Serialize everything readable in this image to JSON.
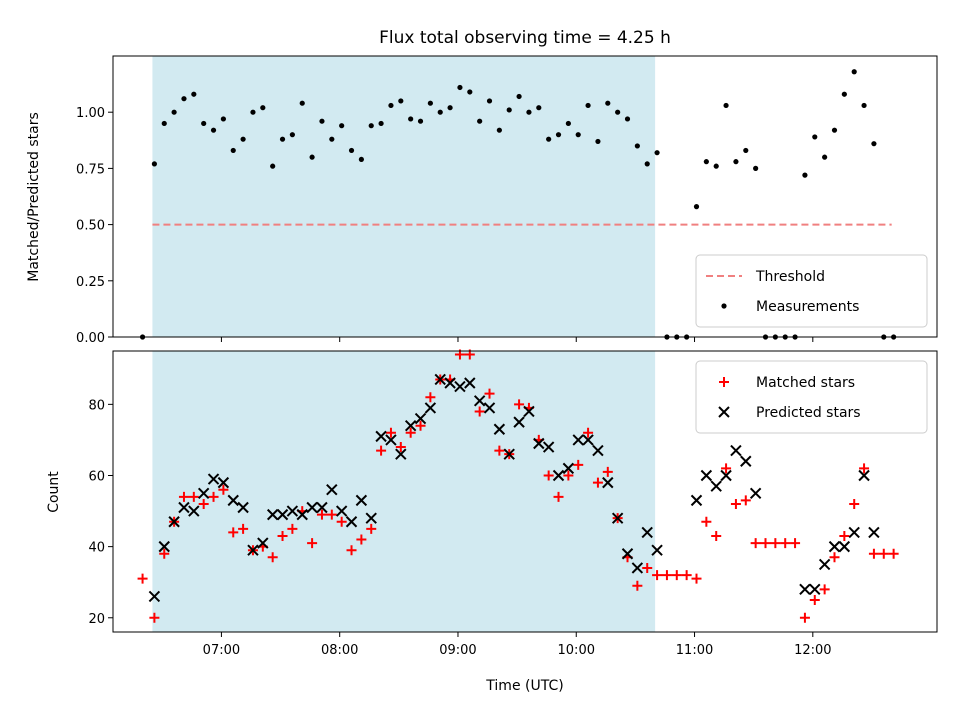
{
  "title": "Flux total observing time = 4.25 h",
  "colors": {
    "shade": "#add8e6",
    "threshold": "#f08080",
    "matched": "#ff0000",
    "predicted": "#000000",
    "measurement": "#000000"
  },
  "chart_data": [
    {
      "type": "scatter",
      "panel": "top",
      "ylabel": "Matched/Predicted stars",
      "xlim": [
        "06:05",
        "13:03"
      ],
      "ylim": [
        0.0,
        1.25
      ],
      "yticks": [
        "0.00",
        "0.25",
        "0.50",
        "0.75",
        "1.00"
      ],
      "grid": false,
      "legend_position": "lower-right",
      "shaded_span": [
        "06:25",
        "10:40"
      ],
      "threshold": {
        "name": "Threshold",
        "y": 0.5,
        "x_range": [
          "06:25",
          "12:40"
        ]
      },
      "series": [
        {
          "name": "Measurements",
          "marker": "dot",
          "points": [
            [
              "06:20",
              0.0
            ],
            [
              "06:26",
              0.77
            ],
            [
              "06:31",
              0.95
            ],
            [
              "06:36",
              1.0
            ],
            [
              "06:41",
              1.06
            ],
            [
              "06:46",
              1.08
            ],
            [
              "06:51",
              0.95
            ],
            [
              "06:56",
              0.92
            ],
            [
              "07:01",
              0.97
            ],
            [
              "07:06",
              0.83
            ],
            [
              "07:11",
              0.88
            ],
            [
              "07:16",
              1.0
            ],
            [
              "07:21",
              1.02
            ],
            [
              "07:26",
              0.76
            ],
            [
              "07:31",
              0.88
            ],
            [
              "07:36",
              0.9
            ],
            [
              "07:41",
              1.04
            ],
            [
              "07:46",
              0.8
            ],
            [
              "07:51",
              0.96
            ],
            [
              "07:56",
              0.88
            ],
            [
              "08:01",
              0.94
            ],
            [
              "08:06",
              0.83
            ],
            [
              "08:11",
              0.79
            ],
            [
              "08:16",
              0.94
            ],
            [
              "08:21",
              0.95
            ],
            [
              "08:26",
              1.03
            ],
            [
              "08:31",
              1.05
            ],
            [
              "08:36",
              0.97
            ],
            [
              "08:41",
              0.96
            ],
            [
              "08:46",
              1.04
            ],
            [
              "08:51",
              1.0
            ],
            [
              "08:56",
              1.02
            ],
            [
              "09:01",
              1.11
            ],
            [
              "09:06",
              1.09
            ],
            [
              "09:11",
              0.96
            ],
            [
              "09:16",
              1.05
            ],
            [
              "09:21",
              0.92
            ],
            [
              "09:26",
              1.01
            ],
            [
              "09:31",
              1.07
            ],
            [
              "09:36",
              1.0
            ],
            [
              "09:41",
              1.02
            ],
            [
              "09:46",
              0.88
            ],
            [
              "09:51",
              0.9
            ],
            [
              "09:56",
              0.95
            ],
            [
              "10:01",
              0.9
            ],
            [
              "10:06",
              1.03
            ],
            [
              "10:11",
              0.87
            ],
            [
              "10:16",
              1.04
            ],
            [
              "10:21",
              1.0
            ],
            [
              "10:26",
              0.97
            ],
            [
              "10:31",
              0.85
            ],
            [
              "10:36",
              0.77
            ],
            [
              "10:41",
              0.82
            ],
            [
              "10:46",
              0.0
            ],
            [
              "10:51",
              0.0
            ],
            [
              "10:56",
              0.0
            ],
            [
              "11:01",
              0.58
            ],
            [
              "11:06",
              0.78
            ],
            [
              "11:11",
              0.76
            ],
            [
              "11:16",
              1.03
            ],
            [
              "11:21",
              0.78
            ],
            [
              "11:26",
              0.83
            ],
            [
              "11:31",
              0.75
            ],
            [
              "11:36",
              0.0
            ],
            [
              "11:41",
              0.0
            ],
            [
              "11:46",
              0.0
            ],
            [
              "11:51",
              0.0
            ],
            [
              "11:56",
              0.72
            ],
            [
              "12:01",
              0.89
            ],
            [
              "12:06",
              0.8
            ],
            [
              "12:11",
              0.92
            ],
            [
              "12:16",
              1.08
            ],
            [
              "12:21",
              1.18
            ],
            [
              "12:26",
              1.03
            ],
            [
              "12:31",
              0.86
            ],
            [
              "12:36",
              0.0
            ],
            [
              "12:41",
              0.0
            ]
          ]
        }
      ]
    },
    {
      "type": "scatter",
      "panel": "bottom",
      "xlabel": "Time (UTC)",
      "ylabel": "Count",
      "xlim": [
        "06:05",
        "13:03"
      ],
      "ylim": [
        16,
        95
      ],
      "xticks": [
        "07:00",
        "08:00",
        "09:00",
        "10:00",
        "11:00",
        "12:00"
      ],
      "yticks": [
        "20",
        "40",
        "60",
        "80"
      ],
      "grid": false,
      "legend_position": "upper-right",
      "shaded_span": [
        "06:25",
        "10:40"
      ],
      "series": [
        {
          "name": "Matched stars",
          "marker": "plus",
          "points": [
            [
              "06:20",
              31
            ],
            [
              "06:26",
              20
            ],
            [
              "06:31",
              38
            ],
            [
              "06:36",
              47
            ],
            [
              "06:41",
              54
            ],
            [
              "06:46",
              54
            ],
            [
              "06:51",
              52
            ],
            [
              "06:56",
              54
            ],
            [
              "07:01",
              56
            ],
            [
              "07:06",
              44
            ],
            [
              "07:11",
              45
            ],
            [
              "07:16",
              39
            ],
            [
              "07:21",
              40
            ],
            [
              "07:26",
              37
            ],
            [
              "07:31",
              43
            ],
            [
              "07:36",
              45
            ],
            [
              "07:41",
              50
            ],
            [
              "07:46",
              41
            ],
            [
              "07:51",
              49
            ],
            [
              "07:56",
              49
            ],
            [
              "08:01",
              47
            ],
            [
              "08:06",
              39
            ],
            [
              "08:11",
              42
            ],
            [
              "08:16",
              45
            ],
            [
              "08:21",
              67
            ],
            [
              "08:26",
              72
            ],
            [
              "08:31",
              68
            ],
            [
              "08:36",
              72
            ],
            [
              "08:41",
              74
            ],
            [
              "08:46",
              82
            ],
            [
              "08:51",
              87
            ],
            [
              "08:56",
              87
            ],
            [
              "09:01",
              94
            ],
            [
              "09:06",
              94
            ],
            [
              "09:11",
              78
            ],
            [
              "09:16",
              83
            ],
            [
              "09:21",
              67
            ],
            [
              "09:26",
              66
            ],
            [
              "09:31",
              80
            ],
            [
              "09:36",
              79
            ],
            [
              "09:41",
              70
            ],
            [
              "09:46",
              60
            ],
            [
              "09:51",
              54
            ],
            [
              "09:56",
              60
            ],
            [
              "10:01",
              63
            ],
            [
              "10:06",
              72
            ],
            [
              "10:11",
              58
            ],
            [
              "10:16",
              61
            ],
            [
              "10:21",
              48
            ],
            [
              "10:26",
              37
            ],
            [
              "10:31",
              29
            ],
            [
              "10:36",
              34
            ],
            [
              "10:41",
              32
            ],
            [
              "10:46",
              32
            ],
            [
              "10:51",
              32
            ],
            [
              "10:56",
              32
            ],
            [
              "11:01",
              31
            ],
            [
              "11:06",
              47
            ],
            [
              "11:11",
              43
            ],
            [
              "11:16",
              62
            ],
            [
              "11:21",
              52
            ],
            [
              "11:26",
              53
            ],
            [
              "11:31",
              41
            ],
            [
              "11:36",
              41
            ],
            [
              "11:41",
              41
            ],
            [
              "11:46",
              41
            ],
            [
              "11:51",
              41
            ],
            [
              "11:56",
              20
            ],
            [
              "12:01",
              25
            ],
            [
              "12:06",
              28
            ],
            [
              "12:11",
              37
            ],
            [
              "12:16",
              43
            ],
            [
              "12:21",
              52
            ],
            [
              "12:26",
              62
            ],
            [
              "12:31",
              38
            ],
            [
              "12:36",
              38
            ],
            [
              "12:41",
              38
            ]
          ]
        },
        {
          "name": "Predicted stars",
          "marker": "cross",
          "points": [
            [
              "06:26",
              26
            ],
            [
              "06:31",
              40
            ],
            [
              "06:36",
              47
            ],
            [
              "06:41",
              51
            ],
            [
              "06:46",
              50
            ],
            [
              "06:51",
              55
            ],
            [
              "06:56",
              59
            ],
            [
              "07:01",
              58
            ],
            [
              "07:06",
              53
            ],
            [
              "07:11",
              51
            ],
            [
              "07:16",
              39
            ],
            [
              "07:21",
              41
            ],
            [
              "07:26",
              49
            ],
            [
              "07:31",
              49
            ],
            [
              "07:36",
              50
            ],
            [
              "07:41",
              49
            ],
            [
              "07:46",
              51
            ],
            [
              "07:51",
              51
            ],
            [
              "07:56",
              56
            ],
            [
              "08:01",
              50
            ],
            [
              "08:06",
              47
            ],
            [
              "08:11",
              53
            ],
            [
              "08:16",
              48
            ],
            [
              "08:21",
              71
            ],
            [
              "08:26",
              70
            ],
            [
              "08:31",
              66
            ],
            [
              "08:36",
              74
            ],
            [
              "08:41",
              76
            ],
            [
              "08:46",
              79
            ],
            [
              "08:51",
              87
            ],
            [
              "08:56",
              86
            ],
            [
              "09:01",
              85
            ],
            [
              "09:06",
              86
            ],
            [
              "09:11",
              81
            ],
            [
              "09:16",
              79
            ],
            [
              "09:21",
              73
            ],
            [
              "09:26",
              66
            ],
            [
              "09:31",
              75
            ],
            [
              "09:36",
              78
            ],
            [
              "09:41",
              69
            ],
            [
              "09:46",
              68
            ],
            [
              "09:51",
              60
            ],
            [
              "09:56",
              62
            ],
            [
              "10:01",
              70
            ],
            [
              "10:06",
              70
            ],
            [
              "10:11",
              67
            ],
            [
              "10:16",
              58
            ],
            [
              "10:21",
              48
            ],
            [
              "10:26",
              38
            ],
            [
              "10:31",
              34
            ],
            [
              "10:36",
              44
            ],
            [
              "10:41",
              39
            ],
            [
              "11:01",
              53
            ],
            [
              "11:06",
              60
            ],
            [
              "11:11",
              57
            ],
            [
              "11:16",
              60
            ],
            [
              "11:21",
              67
            ],
            [
              "11:26",
              64
            ],
            [
              "11:31",
              55
            ],
            [
              "11:56",
              28
            ],
            [
              "12:01",
              28
            ],
            [
              "12:06",
              35
            ],
            [
              "12:11",
              40
            ],
            [
              "12:16",
              40
            ],
            [
              "12:21",
              44
            ],
            [
              "12:26",
              60
            ],
            [
              "12:31",
              44
            ]
          ]
        }
      ]
    }
  ]
}
